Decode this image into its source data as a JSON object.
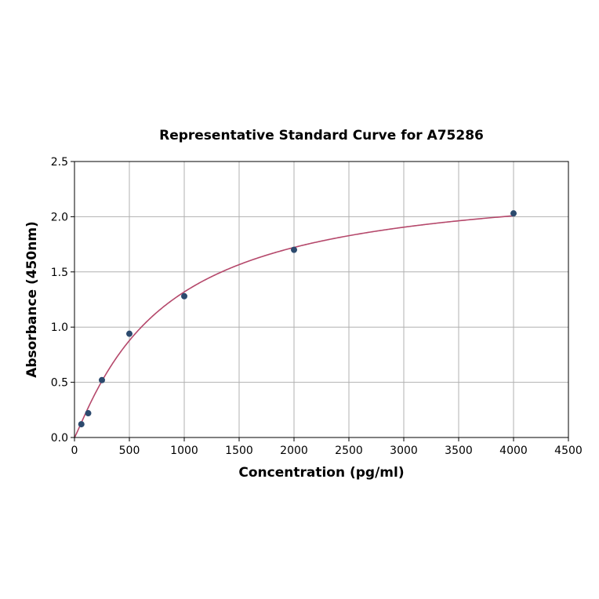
{
  "chart_data": {
    "type": "scatter",
    "title": "Representative Standard Curve for A75286",
    "xlabel": "Concentration (pg/ml)",
    "ylabel": "Absorbance (450nm)",
    "xlim": [
      0,
      4500
    ],
    "ylim": [
      0,
      2.5
    ],
    "xticks": [
      0,
      500,
      1000,
      1500,
      2000,
      2500,
      3000,
      3500,
      4000,
      4500
    ],
    "yticks": [
      "0.0",
      "0.5",
      "1.0",
      "1.5",
      "2.0",
      "2.5"
    ],
    "grid": true,
    "series": [
      {
        "type": "scatter",
        "x": [
          62.5,
          125,
          250,
          500,
          1000,
          2000,
          4000
        ],
        "y": [
          0.12,
          0.22,
          0.52,
          0.94,
          1.28,
          1.7,
          2.03
        ],
        "color": "#2c4a6e"
      },
      {
        "type": "line",
        "fit": "4PL",
        "fit_params": {
          "bottom": 0,
          "top": 2.35,
          "ec50": 800,
          "hill": 1.1
        },
        "x_range": [
          0,
          4000
        ],
        "color": "#b5486b"
      }
    ]
  }
}
